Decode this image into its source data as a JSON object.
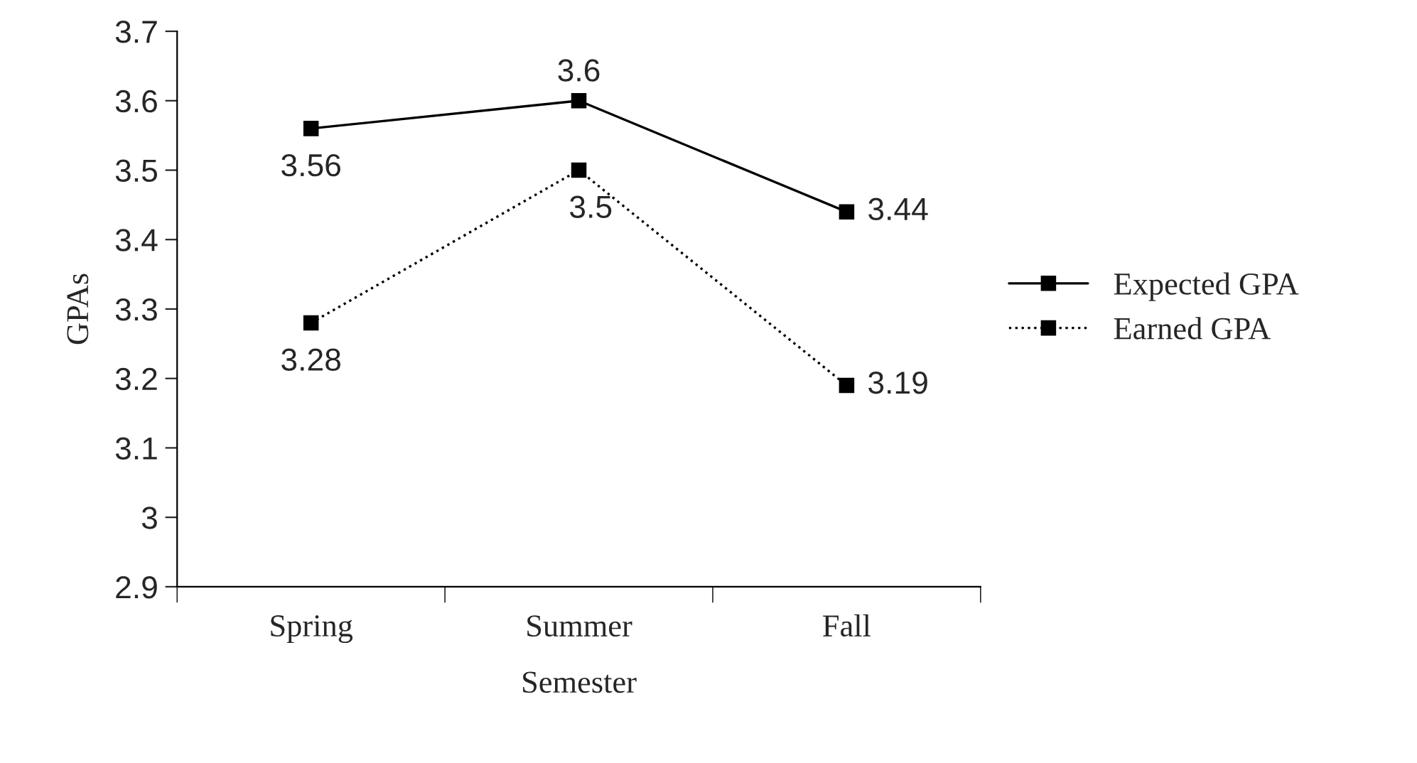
{
  "chart_data": {
    "type": "line",
    "xlabel": "Semester",
    "ylabel": "GPAs",
    "categories": [
      "Spring",
      "Summer",
      "Fall"
    ],
    "series": [
      {
        "name": "Expected GPA",
        "color": "#000000",
        "values": [
          3.56,
          3.6,
          3.44
        ],
        "line_style": "solid"
      },
      {
        "name": "Earned GPA",
        "color": "#000000",
        "values": [
          3.28,
          3.5,
          3.19
        ],
        "line_style": "dotted"
      }
    ],
    "ylim": [
      2.9,
      3.7
    ],
    "yticks": [
      2.9,
      3,
      3.1,
      3.2,
      3.3,
      3.4,
      3.5,
      3.6,
      3.7
    ],
    "data_labels": true,
    "marker": "square",
    "grid": false,
    "legend": "right"
  }
}
